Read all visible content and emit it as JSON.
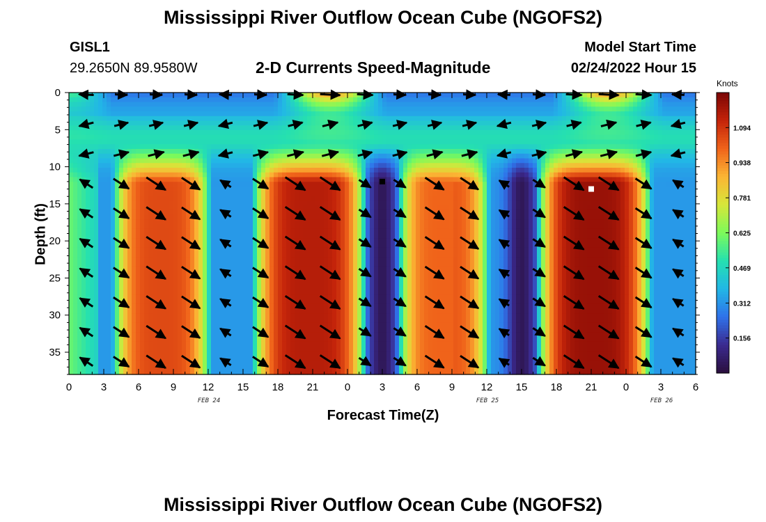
{
  "title": "Mississippi River Outflow Ocean Cube (NGOFS2)",
  "title_bottom": "Mississippi River Outflow Ocean Cube (NGOFS2)",
  "station": {
    "id": "GISL1",
    "coords": "29.2650N  89.9580W"
  },
  "subtitle": "2-D Currents Speed-Magnitude",
  "model": {
    "label": "Model Start Time",
    "value": "02/24/2022 Hour 15"
  },
  "chart_data": {
    "type": "heatmap",
    "title": "2-D Currents Speed-Magnitude",
    "xlabel": "Forecast Time(Z)",
    "ylabel": "Depth (ft)",
    "x_ticks": [
      "0",
      "3",
      "6",
      "9",
      "12",
      "15",
      "18",
      "21",
      "0",
      "3",
      "6",
      "9",
      "12",
      "15",
      "18",
      "21",
      "0",
      "3",
      "6"
    ],
    "x_range_hours": [
      0,
      54
    ],
    "date_labels": [
      "FEB 24",
      "FEB 25",
      "FEB 26"
    ],
    "y_ticks": [
      "0",
      "5",
      "10",
      "15",
      "20",
      "25",
      "30",
      "35"
    ],
    "ylim": [
      0,
      38
    ],
    "y_inverted": true,
    "colorbar": {
      "unit": "Knots",
      "ticks": [
        "0.156",
        "0.312",
        "0.469",
        "0.625",
        "0.781",
        "0.938",
        "1.094"
      ],
      "range": [
        0,
        1.25
      ],
      "colors": [
        "#2a0f3d",
        "#3b2a8f",
        "#2f72ea",
        "#22b7e6",
        "#25e0b0",
        "#7dfa5a",
        "#d6e63a",
        "#fbb534",
        "#f0631a",
        "#c4240a",
        "#7a0505"
      ]
    },
    "max_speed_knots": 1.2,
    "strong_current_periods": [
      {
        "start_h": 4.5,
        "end_h": 11.5,
        "peak_knots": 1.05
      },
      {
        "start_h": 16.5,
        "end_h": 25.0,
        "peak_knots": 1.15
      },
      {
        "start_h": 29.0,
        "end_h": 35.5,
        "peak_knots": 1.0
      },
      {
        "start_h": 41.0,
        "end_h": 49.5,
        "peak_knots": 1.2
      }
    ],
    "slack_times_h": [
      27.0,
      39.0
    ],
    "markers": [
      {
        "time_h": 27.0,
        "depth_ft": 12,
        "color": "#000000"
      },
      {
        "time_h": 45.0,
        "depth_ft": 13,
        "color": "#ffffff"
      }
    ],
    "grid": false
  }
}
